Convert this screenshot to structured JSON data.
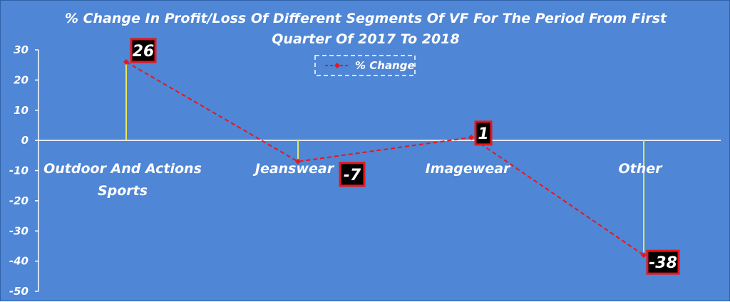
{
  "chart_data": {
    "type": "line",
    "title": "% Change In Profit/Loss Of Different Segments Of VF For The Period From First Quarter Of 2017 To 2018",
    "title_lines": [
      "% Change In Profit/Loss Of Different Segments Of VF For The Period From First",
      "Quarter Of 2017 To 2018"
    ],
    "categories": [
      "Outdoor And Actions Sports",
      "Jeanswear",
      "Imagewear",
      "Other"
    ],
    "category_lines": [
      [
        "Outdoor And Actions",
        "Sports"
      ],
      [
        "Jeanswear"
      ],
      [
        "Imagewear"
      ],
      [
        "Other"
      ]
    ],
    "series": [
      {
        "name": "% Change",
        "values": [
          26,
          -7,
          1,
          -38
        ]
      }
    ],
    "data_labels": [
      "26",
      "-7",
      "1",
      "-38"
    ],
    "yticks": [
      "30",
      "20",
      "10",
      "0",
      "-10",
      "-20",
      "-30",
      "-40",
      "-50"
    ],
    "ylim": [
      -50,
      30
    ],
    "legend_position": "top-center",
    "grid": false,
    "colors": {
      "background": "#4f86d6",
      "line": "#e8161a",
      "drop_line": "#e6e65a",
      "axis": "#ffffff",
      "label_box": "#000000",
      "label_border": "#e8161a"
    }
  }
}
